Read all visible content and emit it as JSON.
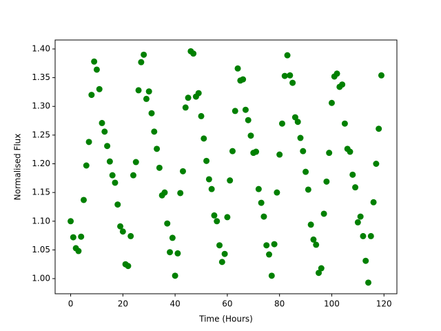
{
  "chart_data": {
    "type": "scatter",
    "xlabel": "Time (Hours)",
    "ylabel": "Normalised Flux",
    "color": "#008000",
    "x": [
      0,
      1,
      2,
      3,
      4,
      5,
      6,
      7,
      8,
      9,
      10,
      11,
      12,
      13,
      14,
      15,
      16,
      17,
      18,
      19,
      20,
      21,
      22,
      23,
      24,
      25,
      26,
      27,
      28,
      29,
      30,
      31,
      32,
      33,
      34,
      35,
      36,
      37,
      38,
      39,
      40,
      41,
      42,
      43,
      44,
      45,
      46,
      47,
      48,
      49,
      50,
      51,
      52,
      53,
      54,
      55,
      56,
      57,
      58,
      59,
      60,
      61,
      62,
      63,
      64,
      65,
      66,
      67,
      68,
      69,
      70,
      71,
      72,
      73,
      74,
      75,
      76,
      77,
      78,
      79,
      80,
      81,
      82,
      83,
      84,
      85,
      86,
      87,
      88,
      89,
      90,
      91,
      92,
      93,
      94,
      95,
      96,
      97,
      98,
      99,
      100,
      101,
      102,
      103,
      104,
      105,
      106,
      107,
      108,
      109,
      110,
      111,
      112,
      113,
      114,
      115,
      116,
      117,
      118,
      119
    ],
    "values": [
      1.1,
      1.072,
      1.053,
      1.048,
      1.073,
      1.137,
      1.197,
      1.238,
      1.32,
      1.378,
      1.364,
      1.33,
      1.271,
      1.256,
      1.231,
      1.204,
      1.18,
      1.167,
      1.129,
      1.091,
      1.082,
      1.025,
      1.022,
      1.074,
      1.18,
      1.203,
      1.328,
      1.377,
      1.39,
      1.313,
      1.326,
      1.288,
      1.256,
      1.226,
      1.193,
      1.145,
      1.15,
      1.096,
      1.046,
      1.071,
      1.005,
      1.044,
      1.149,
      1.187,
      1.298,
      1.315,
      1.396,
      1.392,
      1.317,
      1.323,
      1.283,
      1.244,
      1.205,
      1.173,
      1.156,
      1.11,
      1.1,
      1.058,
      1.029,
      1.043,
      1.107,
      1.171,
      1.222,
      1.292,
      1.366,
      1.345,
      1.347,
      1.294,
      1.276,
      1.249,
      1.219,
      1.221,
      1.156,
      1.132,
      1.108,
      1.058,
      1.042,
      1.005,
      1.06,
      1.15,
      1.216,
      1.27,
      1.353,
      1.389,
      1.354,
      1.341,
      1.281,
      1.273,
      1.245,
      1.222,
      1.186,
      1.155,
      1.094,
      1.068,
      1.059,
      1.01,
      1.018,
      1.113,
      1.169,
      1.219,
      1.306,
      1.352,
      1.357,
      1.334,
      1.338,
      1.27,
      1.226,
      1.221,
      1.181,
      1.159,
      1.098,
      1.108,
      1.074,
      1.031,
      0.993,
      1.074,
      1.133,
      1.2,
      1.261,
      1.354
    ],
    "xlim": [
      -5.95,
      124.95
    ],
    "ylim": [
      0.9736,
      1.4156
    ],
    "xticks": [
      0,
      20,
      40,
      60,
      80,
      100,
      120
    ],
    "yticks": [
      {
        "value": 1.0,
        "label": "1.00"
      },
      {
        "value": 1.05,
        "label": "1.05"
      },
      {
        "value": 1.1,
        "label": "1.10"
      },
      {
        "value": 1.15,
        "label": "1.15"
      },
      {
        "value": 1.2,
        "label": "1.20"
      },
      {
        "value": 1.25,
        "label": "1.25"
      },
      {
        "value": 1.3,
        "label": "1.30"
      },
      {
        "value": 1.35,
        "label": "1.35"
      },
      {
        "value": 1.4,
        "label": "1.40"
      }
    ]
  }
}
